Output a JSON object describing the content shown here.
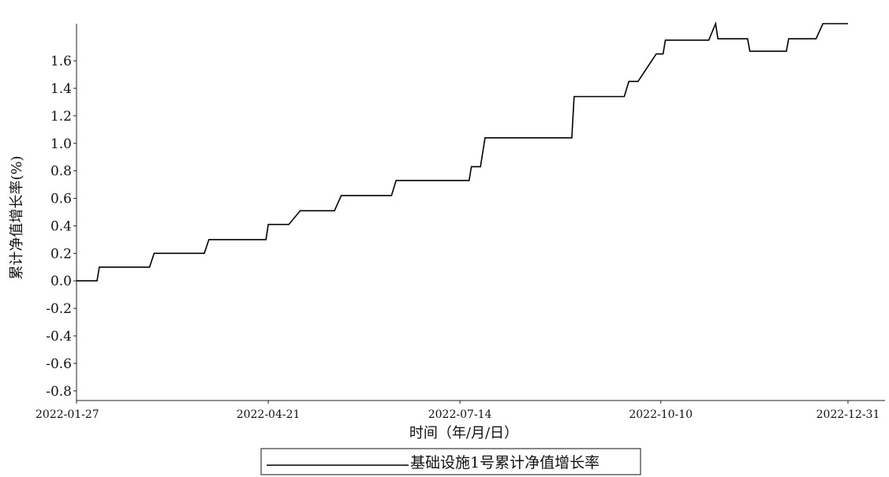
{
  "chart_data": {
    "type": "line",
    "xlabel": "时间（年/月/日）",
    "ylabel": "累计净值增长率(%)",
    "ylim": [
      -0.87,
      1.87
    ],
    "yticks": [
      "1.6",
      "1.4",
      "1.2",
      "1.0",
      "0.8",
      "0.6",
      "0.4",
      "0.2",
      "0.0",
      "-0.2",
      "-0.4",
      "-0.6",
      "-0.8"
    ],
    "xlim": [
      "2022-01-27",
      "2022-12-31"
    ],
    "xticks": [
      "2022-01-27",
      "2022-04-21",
      "2022-07-14",
      "2022-10-10",
      "2022-12-31"
    ],
    "legend_position": "bottom-center",
    "grid": false,
    "series": [
      {
        "name": "基础设施1号累计净值增长率",
        "color": "#000000",
        "points": [
          {
            "x": "2022-01-27",
            "y": 0.0
          },
          {
            "x": "2022-02-05",
            "y": 0.0
          },
          {
            "x": "2022-02-06",
            "y": 0.1
          },
          {
            "x": "2022-02-28",
            "y": 0.1
          },
          {
            "x": "2022-03-02",
            "y": 0.2
          },
          {
            "x": "2022-03-24",
            "y": 0.2
          },
          {
            "x": "2022-03-26",
            "y": 0.3
          },
          {
            "x": "2022-04-20",
            "y": 0.3
          },
          {
            "x": "2022-04-21",
            "y": 0.41
          },
          {
            "x": "2022-04-30",
            "y": 0.41
          },
          {
            "x": "2022-05-05",
            "y": 0.51
          },
          {
            "x": "2022-05-20",
            "y": 0.51
          },
          {
            "x": "2022-05-23",
            "y": 0.62
          },
          {
            "x": "2022-06-14",
            "y": 0.62
          },
          {
            "x": "2022-06-16",
            "y": 0.73
          },
          {
            "x": "2022-07-18",
            "y": 0.73
          },
          {
            "x": "2022-07-19",
            "y": 0.83
          },
          {
            "x": "2022-07-23",
            "y": 0.83
          },
          {
            "x": "2022-07-25",
            "y": 1.04
          },
          {
            "x": "2022-09-01",
            "y": 1.04
          },
          {
            "x": "2022-09-02",
            "y": 1.34
          },
          {
            "x": "2022-09-24",
            "y": 1.34
          },
          {
            "x": "2022-09-26",
            "y": 1.45
          },
          {
            "x": "2022-09-30",
            "y": 1.45
          },
          {
            "x": "2022-10-08",
            "y": 1.65
          },
          {
            "x": "2022-10-11",
            "y": 1.65
          },
          {
            "x": "2022-10-12",
            "y": 1.75
          },
          {
            "x": "2022-10-31",
            "y": 1.75
          },
          {
            "x": "2022-11-03",
            "y": 1.87
          },
          {
            "x": "2022-11-04",
            "y": 1.76
          },
          {
            "x": "2022-11-17",
            "y": 1.76
          },
          {
            "x": "2022-11-18",
            "y": 1.67
          },
          {
            "x": "2022-12-04",
            "y": 1.67
          },
          {
            "x": "2022-12-05",
            "y": 1.76
          },
          {
            "x": "2022-12-17",
            "y": 1.76
          },
          {
            "x": "2022-12-20",
            "y": 1.87
          },
          {
            "x": "2022-12-31",
            "y": 1.87
          }
        ]
      }
    ]
  }
}
